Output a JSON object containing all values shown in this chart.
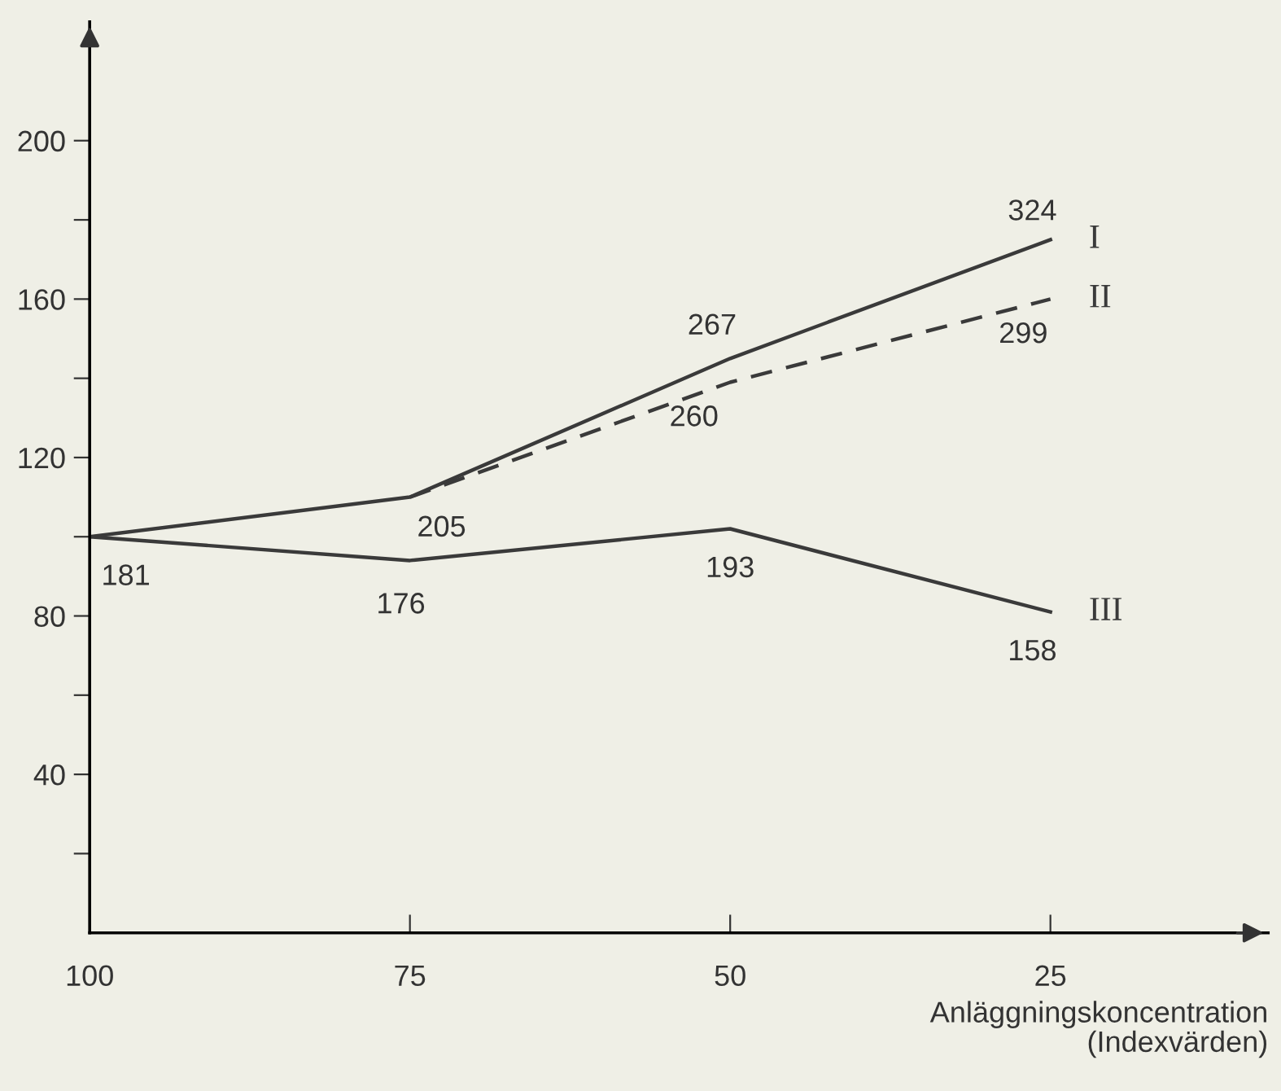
{
  "chart_data": {
    "type": "line",
    "xlabel": "Anläggningskoncentration\n(Indexvärden)",
    "x": [
      100,
      75,
      50,
      25
    ],
    "series": [
      {
        "name": "I",
        "color": "#3a3a3a",
        "line_style": "solid",
        "values": [
          100,
          110,
          145,
          175
        ]
      },
      {
        "name": "II",
        "color": "#3a3a3a",
        "line_style": "dashed",
        "x": [
          75,
          50,
          25
        ],
        "values": [
          110,
          139,
          160
        ]
      },
      {
        "name": "III",
        "color": "#3a3a3a",
        "line_style": "solid",
        "values": [
          100,
          94,
          102,
          81
        ]
      }
    ],
    "annotations": [
      {
        "text": "181",
        "x": 100,
        "y": 100
      },
      {
        "text": "205",
        "x": 75,
        "y": 110
      },
      {
        "text": "267",
        "x": 50,
        "y": 145
      },
      {
        "text": "324",
        "x": 25,
        "y": 175
      },
      {
        "text": "260",
        "x": 50,
        "y": 139
      },
      {
        "text": "299",
        "x": 25,
        "y": 160
      },
      {
        "text": "176",
        "x": 75,
        "y": 94
      },
      {
        "text": "193",
        "x": 50,
        "y": 102
      },
      {
        "text": "158",
        "x": 25,
        "y": 81
      }
    ],
    "xlim": [
      100,
      8
    ],
    "ylim": [
      0,
      230
    ],
    "xticks": [
      100,
      75,
      50,
      25
    ],
    "yticks": [
      {
        "value": 20,
        "label": null
      },
      40,
      {
        "value": 60,
        "label": null
      },
      80,
      {
        "value": 100,
        "label": null
      },
      120,
      {
        "value": 140,
        "label": null
      },
      160,
      {
        "value": 180,
        "label": null
      },
      200
    ],
    "grid": false,
    "legend": false,
    "marker": "none"
  }
}
